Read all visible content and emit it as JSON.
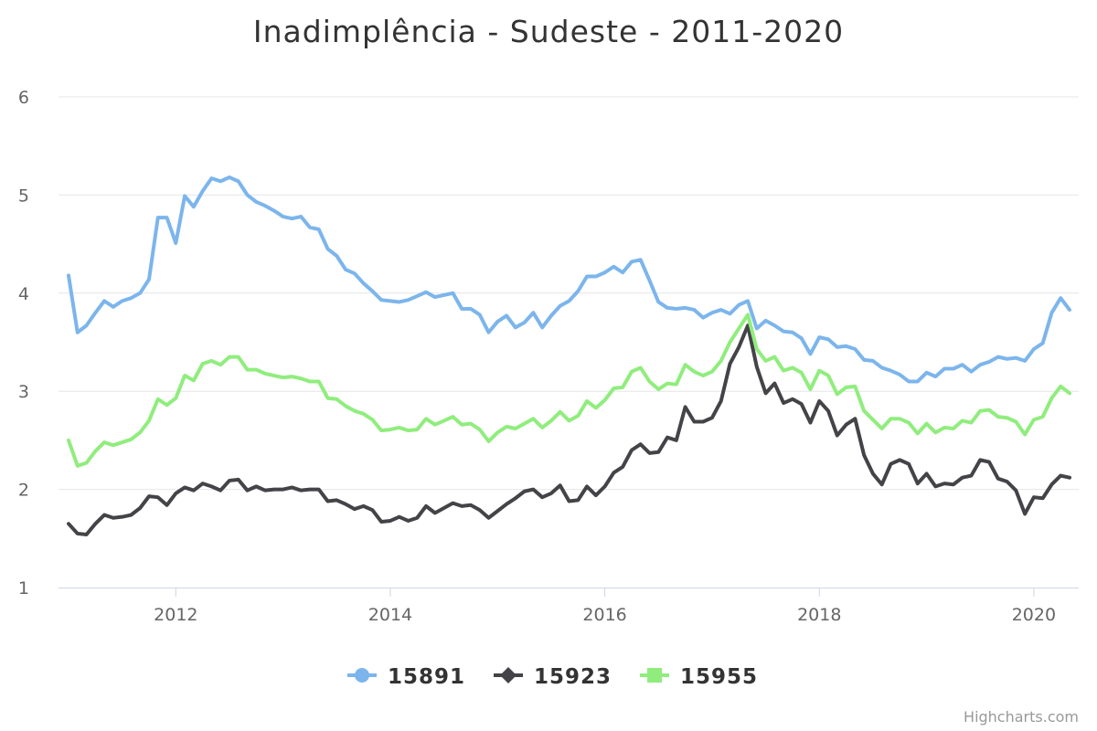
{
  "chart_data": {
    "type": "line",
    "title": "Inadimplência - Sudeste - 2011-2020",
    "credits": "Highcharts.com",
    "x_start": "2011-01",
    "x_end": "2020-05",
    "x_interval": "month",
    "x_ticks": [
      "2012",
      "2014",
      "2016",
      "2018",
      "2020"
    ],
    "ylim": [
      1,
      6
    ],
    "y_ticks": [
      "1",
      "2",
      "3",
      "4",
      "5",
      "6"
    ],
    "grid": true,
    "legend": "bottom-center",
    "series": [
      {
        "name": "15891",
        "color": "#7cb5ec",
        "marker": "circle",
        "values": [
          4.18,
          3.6,
          3.67,
          3.8,
          3.92,
          3.86,
          3.92,
          3.95,
          4.0,
          4.14,
          4.77,
          4.77,
          4.51,
          4.99,
          4.88,
          5.04,
          5.17,
          5.14,
          5.18,
          5.14,
          5.0,
          4.93,
          4.89,
          4.84,
          4.78,
          4.76,
          4.78,
          4.67,
          4.65,
          4.45,
          4.38,
          4.24,
          4.2,
          4.1,
          4.02,
          3.93,
          3.92,
          3.91,
          3.93,
          3.97,
          4.01,
          3.96,
          3.98,
          4.0,
          3.84,
          3.84,
          3.78,
          3.6,
          3.71,
          3.77,
          3.65,
          3.7,
          3.8,
          3.65,
          3.77,
          3.87,
          3.92,
          4.02,
          4.17,
          4.17,
          4.21,
          4.27,
          4.21,
          4.32,
          4.34,
          4.13,
          3.91,
          3.85,
          3.84,
          3.85,
          3.83,
          3.75,
          3.8,
          3.83,
          3.79,
          3.88,
          3.92,
          3.64,
          3.72,
          3.67,
          3.61,
          3.6,
          3.54,
          3.38,
          3.55,
          3.53,
          3.45,
          3.46,
          3.43,
          3.32,
          3.31,
          3.24,
          3.21,
          3.17,
          3.1,
          3.1,
          3.19,
          3.15,
          3.23,
          3.23,
          3.27,
          3.2,
          3.27,
          3.3,
          3.35,
          3.33,
          3.34,
          3.31,
          3.43,
          3.49,
          3.8,
          3.95,
          3.83
        ]
      },
      {
        "name": "15923",
        "color": "#434348",
        "marker": "diamond",
        "values": [
          1.65,
          1.55,
          1.54,
          1.65,
          1.74,
          1.71,
          1.72,
          1.74,
          1.81,
          1.93,
          1.92,
          1.84,
          1.96,
          2.02,
          1.99,
          2.06,
          2.03,
          1.99,
          2.09,
          2.1,
          1.99,
          2.03,
          1.99,
          2.0,
          2.0,
          2.02,
          1.99,
          2.0,
          2.0,
          1.88,
          1.89,
          1.85,
          1.8,
          1.83,
          1.79,
          1.67,
          1.68,
          1.72,
          1.68,
          1.71,
          1.83,
          1.76,
          1.81,
          1.86,
          1.83,
          1.84,
          1.79,
          1.71,
          1.78,
          1.85,
          1.91,
          1.98,
          2.0,
          1.92,
          1.96,
          2.04,
          1.88,
          1.89,
          2.03,
          1.94,
          2.03,
          2.17,
          2.23,
          2.4,
          2.46,
          2.37,
          2.38,
          2.53,
          2.5,
          2.84,
          2.69,
          2.69,
          2.73,
          2.9,
          3.28,
          3.45,
          3.67,
          3.25,
          2.98,
          3.08,
          2.88,
          2.92,
          2.87,
          2.68,
          2.9,
          2.8,
          2.55,
          2.66,
          2.72,
          2.35,
          2.16,
          2.05,
          2.26,
          2.3,
          2.26,
          2.06,
          2.16,
          2.03,
          2.06,
          2.05,
          2.12,
          2.14,
          2.3,
          2.28,
          2.11,
          2.08,
          1.99,
          1.75,
          1.92,
          1.91,
          2.05,
          2.14,
          2.12
        ]
      },
      {
        "name": "15955",
        "color": "#90ed7d",
        "marker": "square",
        "values": [
          2.5,
          2.24,
          2.27,
          2.39,
          2.48,
          2.45,
          2.48,
          2.51,
          2.58,
          2.7,
          2.92,
          2.86,
          2.93,
          3.16,
          3.11,
          3.28,
          3.31,
          3.27,
          3.35,
          3.35,
          3.22,
          3.22,
          3.18,
          3.16,
          3.14,
          3.15,
          3.13,
          3.1,
          3.1,
          2.93,
          2.92,
          2.85,
          2.8,
          2.77,
          2.71,
          2.6,
          2.61,
          2.63,
          2.6,
          2.61,
          2.72,
          2.66,
          2.7,
          2.74,
          2.66,
          2.67,
          2.61,
          2.49,
          2.58,
          2.64,
          2.62,
          2.67,
          2.72,
          2.63,
          2.7,
          2.79,
          2.7,
          2.75,
          2.9,
          2.83,
          2.91,
          3.03,
          3.04,
          3.2,
          3.24,
          3.1,
          3.02,
          3.08,
          3.07,
          3.27,
          3.2,
          3.16,
          3.2,
          3.31,
          3.5,
          3.64,
          3.78,
          3.43,
          3.31,
          3.35,
          3.21,
          3.24,
          3.19,
          3.02,
          3.21,
          3.16,
          2.97,
          3.04,
          3.05,
          2.8,
          2.71,
          2.62,
          2.72,
          2.72,
          2.68,
          2.57,
          2.67,
          2.58,
          2.63,
          2.62,
          2.7,
          2.68,
          2.8,
          2.81,
          2.74,
          2.73,
          2.69,
          2.56,
          2.71,
          2.74,
          2.93,
          3.05,
          2.98
        ]
      }
    ]
  }
}
